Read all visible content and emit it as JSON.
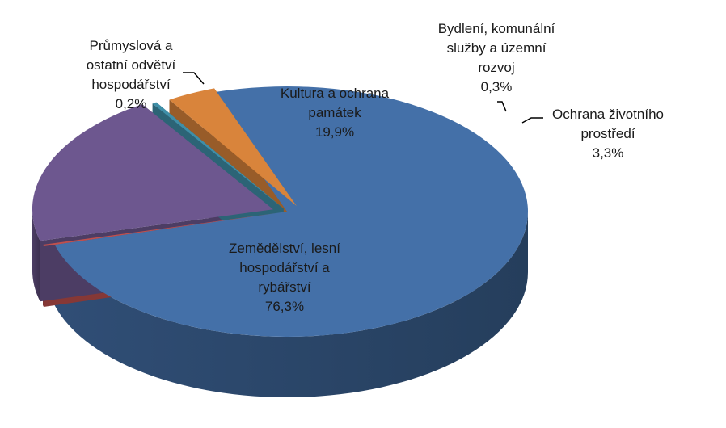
{
  "chart_data": {
    "type": "pie",
    "style": "3d-exploded",
    "title": "",
    "legend": "none",
    "slices": [
      {
        "label_lines": [
          "Zemědělství, lesní",
          "hospodářství a",
          "rybářství"
        ],
        "value": 76.3,
        "value_label": "76,3%",
        "color": "#4470A8",
        "label_position": "inside"
      },
      {
        "label_lines": [
          "Průmyslová a",
          "ostatní odvětví",
          "hospodářství"
        ],
        "value": 0.2,
        "value_label": "0,2%",
        "color": "#C0504D",
        "label_position": "outside-left"
      },
      {
        "label_lines": [
          "Kultura a ochrana",
          "památek"
        ],
        "value": 19.9,
        "value_label": "19,9%",
        "color": "#6D578F",
        "label_position": "inside"
      },
      {
        "label_lines": [
          "Bydlení, komunální",
          "služby a územní",
          "rozvoj"
        ],
        "value": 0.3,
        "value_label": "0,3%",
        "color": "#3F8FA8",
        "label_position": "outside-top"
      },
      {
        "label_lines": [
          "Ochrana životního",
          "prostředí"
        ],
        "value": 3.3,
        "value_label": "3,3%",
        "color": "#D9843B",
        "label_position": "outside-right"
      }
    ]
  }
}
